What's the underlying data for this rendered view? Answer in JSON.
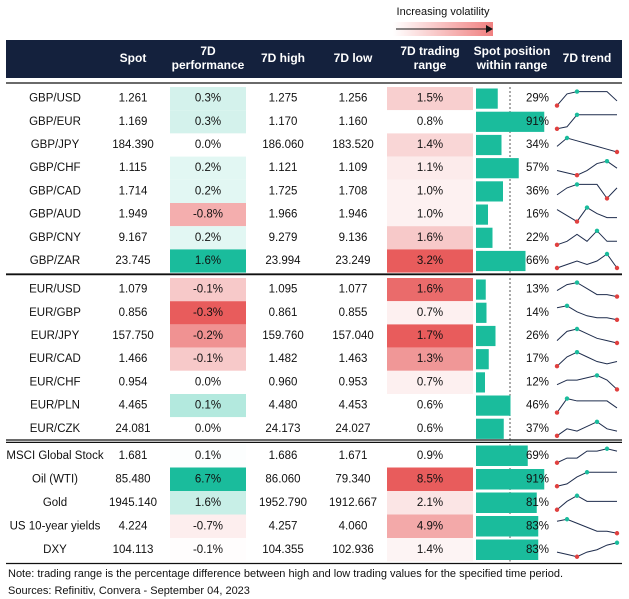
{
  "legend_label": "Increasing volatility",
  "headers": [
    [],
    [
      "Spot"
    ],
    [
      "7D",
      "performance"
    ],
    [
      "7D high"
    ],
    [
      "7D low"
    ],
    [
      "7D trading",
      "range"
    ],
    [
      "Spot position",
      "within range"
    ],
    [
      "7D trend"
    ]
  ],
  "groups": [
    {
      "rows": [
        {
          "cells": [
            "GBP/USD",
            "1.261",
            "0.3%",
            "1.275",
            "1.256",
            "1.5%",
            "29%"
          ],
          "trend": [
            3,
            8,
            9,
            9,
            9,
            9,
            5
          ]
        },
        {
          "cells": [
            "GBP/EUR",
            "1.169",
            "0.3%",
            "1.170",
            "1.160",
            "0.8%",
            "91%"
          ],
          "trend": [
            2,
            3,
            9,
            9,
            9,
            9,
            9
          ]
        },
        {
          "cells": [
            "GBP/JPY",
            "184.390",
            "0.0%",
            "186.060",
            "183.520",
            "1.4%",
            "34%"
          ],
          "trend": [
            5,
            8,
            7,
            6,
            5,
            4,
            3
          ]
        },
        {
          "cells": [
            "GBP/CHF",
            "1.115",
            "0.2%",
            "1.121",
            "1.109",
            "1.1%",
            "57%"
          ],
          "trend": [
            4,
            3,
            2,
            4,
            7,
            8,
            5
          ]
        },
        {
          "cells": [
            "GBP/CAD",
            "1.714",
            "0.2%",
            "1.725",
            "1.708",
            "1.0%",
            "36%"
          ],
          "trend": [
            4,
            6,
            7,
            7,
            7,
            3,
            6
          ]
        },
        {
          "cells": [
            "GBP/AUD",
            "1.949",
            "-0.8%",
            "1.966",
            "1.946",
            "1.0%",
            "16%"
          ],
          "trend": [
            8,
            5,
            2,
            9,
            6,
            4,
            4
          ]
        },
        {
          "cells": [
            "GBP/CNY",
            "9.167",
            "0.2%",
            "9.279",
            "9.136",
            "1.6%",
            "22%"
          ],
          "trend": [
            4,
            5,
            7,
            5,
            8,
            5,
            5
          ]
        },
        {
          "cells": [
            "GBP/ZAR",
            "23.745",
            "1.6%",
            "23.994",
            "23.249",
            "3.2%",
            "66%"
          ],
          "trend": [
            5,
            6,
            7,
            6,
            7,
            9,
            5
          ]
        }
      ]
    },
    {
      "rows": [
        {
          "cells": [
            "EUR/USD",
            "1.079",
            "-0.1%",
            "1.095",
            "1.077",
            "1.6%",
            "13%"
          ],
          "trend": [
            5,
            8,
            9,
            6,
            3,
            3,
            2
          ]
        },
        {
          "cells": [
            "EUR/GBP",
            "0.856",
            "-0.3%",
            "0.861",
            "0.855",
            "0.7%",
            "14%"
          ],
          "trend": [
            8,
            9,
            6,
            4,
            3,
            3,
            2
          ]
        },
        {
          "cells": [
            "EUR/JPY",
            "157.750",
            "-0.2%",
            "159.760",
            "157.040",
            "1.7%",
            "26%"
          ],
          "trend": [
            4,
            8,
            9,
            7,
            5,
            4,
            3
          ]
        },
        {
          "cells": [
            "EUR/CAD",
            "1.466",
            "-0.1%",
            "1.482",
            "1.463",
            "1.3%",
            "17%"
          ],
          "trend": [
            3,
            7,
            9,
            7,
            5,
            4,
            5
          ]
        },
        {
          "cells": [
            "EUR/CHF",
            "0.954",
            "0.0%",
            "0.960",
            "0.953",
            "0.7%",
            "12%"
          ],
          "trend": [
            5,
            7,
            7,
            8,
            9,
            7,
            3
          ]
        },
        {
          "cells": [
            "EUR/PLN",
            "4.465",
            "0.1%",
            "4.480",
            "4.453",
            "0.6%",
            "46%"
          ],
          "trend": [
            3,
            9,
            8,
            8,
            8,
            8,
            5
          ]
        },
        {
          "cells": [
            "EUR/CZK",
            "24.081",
            "0.0%",
            "24.173",
            "24.027",
            "0.6%",
            "37%"
          ],
          "trend": [
            3,
            6,
            5,
            7,
            9,
            6,
            5
          ]
        }
      ]
    },
    {
      "rows": [
        {
          "cells": [
            "MSCI Global Stock",
            "1.681",
            "0.1%",
            "1.686",
            "1.671",
            "0.9%",
            "69%"
          ],
          "trend": [
            3,
            5,
            5,
            8,
            8,
            9,
            8
          ]
        },
        {
          "cells": [
            "Oil (WTI)",
            "85.480",
            "6.7%",
            "86.060",
            "79.340",
            "8.5%",
            "91%"
          ],
          "trend": [
            3,
            4,
            7,
            9,
            9,
            9,
            9
          ]
        },
        {
          "cells": [
            "Gold",
            "1945.140",
            "1.6%",
            "1952.790",
            "1912.667",
            "2.1%",
            "81%"
          ],
          "trend": [
            3,
            6,
            8,
            6,
            6,
            6,
            6
          ]
        },
        {
          "cells": [
            "US 10-year yields",
            "4.224",
            "-0.7%",
            "4.257",
            "4.060",
            "4.9%",
            "83%"
          ],
          "trend": [
            8,
            9,
            7,
            5,
            3,
            3,
            2
          ]
        },
        {
          "cells": [
            "DXY",
            "104.113",
            "-0.1%",
            "104.355",
            "102.936",
            "1.4%",
            "83%"
          ],
          "trend": [
            4,
            3,
            2,
            4,
            5,
            7,
            8
          ]
        }
      ]
    }
  ],
  "note": "Note: trading range is the percentage difference between high and low trading values for the specified time period.",
  "sources": "Sources: Refinitiv, Convera - September 04, 2023"
}
